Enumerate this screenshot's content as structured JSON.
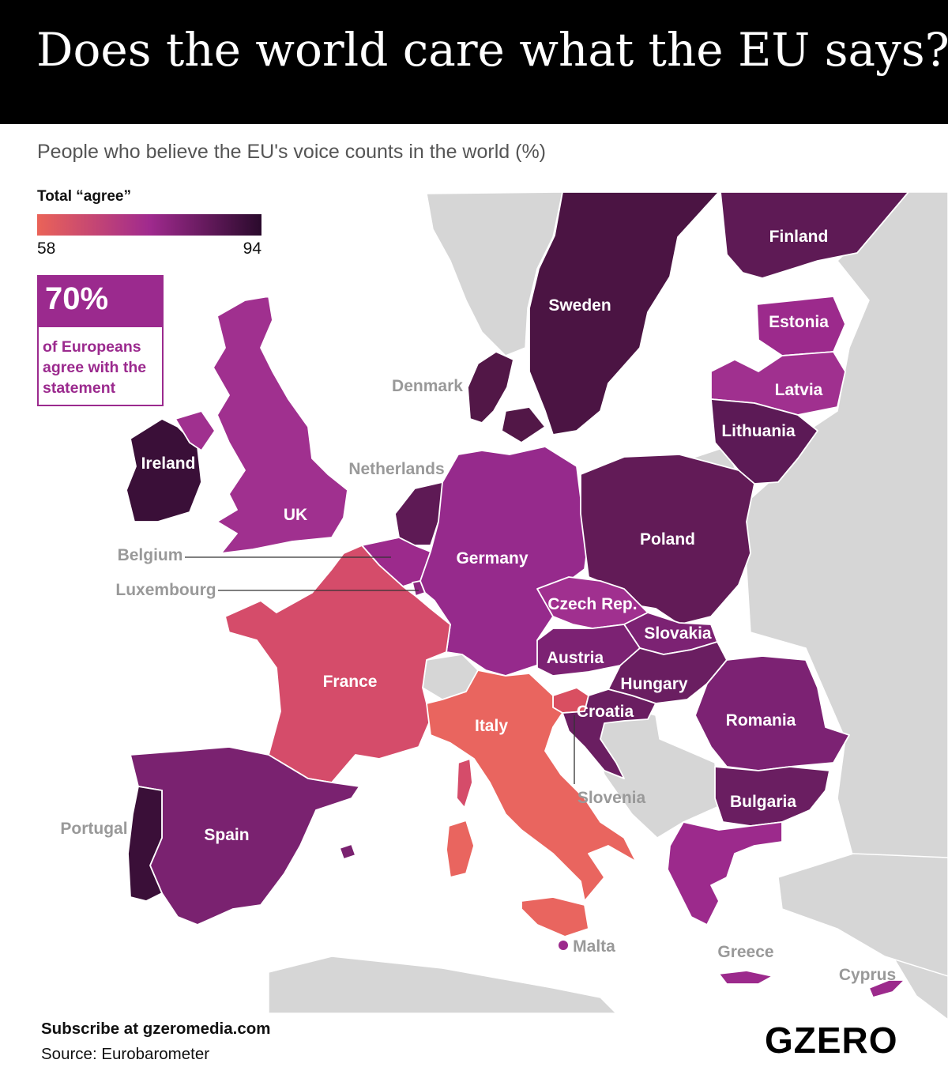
{
  "title": "Does the world care what the EU says?",
  "subtitle": "People who believe the EU's voice counts in the world (%)",
  "legend": {
    "title": "Total “agree”",
    "min_label": "58",
    "max_label": "94",
    "min_value": 58,
    "max_value": 94,
    "color_low": "#ea6358",
    "color_mid": "#a02a8e",
    "color_high": "#2a0a2c"
  },
  "callout": {
    "value": "70%",
    "text": "of Europeans agree with the statement",
    "color": "#9b2a8e"
  },
  "colors": {
    "no_data": "#d6d6d6",
    "label_on_map": "#ffffff",
    "label_grey": "#999999"
  },
  "countries": {
    "finland": "Finland",
    "sweden": "Sweden",
    "estonia": "Estonia",
    "latvia": "Latvia",
    "lithuania": "Lithuania",
    "denmark": "Denmark",
    "ireland": "Ireland",
    "uk": "UK",
    "netherlands": "Netherlands",
    "belgium": "Belgium",
    "luxembourg": "Luxembourg",
    "germany": "Germany",
    "poland": "Poland",
    "czech": "Czech Rep.",
    "slovakia": "Slovakia",
    "austria": "Austria",
    "hungary": "Hungary",
    "france": "France",
    "italy": "Italy",
    "croatia": "Croatia",
    "slovenia": "Slovenia",
    "romania": "Romania",
    "bulgaria": "Bulgaria",
    "spain": "Spain",
    "portugal": "Portugal",
    "malta": "Malta",
    "greece": "Greece",
    "cyprus": "Cyprus"
  },
  "footer": {
    "subscribe": "Subscribe at gzeromedia.com",
    "source": "Source: Eurobarometer"
  },
  "logo": "GZERO"
}
